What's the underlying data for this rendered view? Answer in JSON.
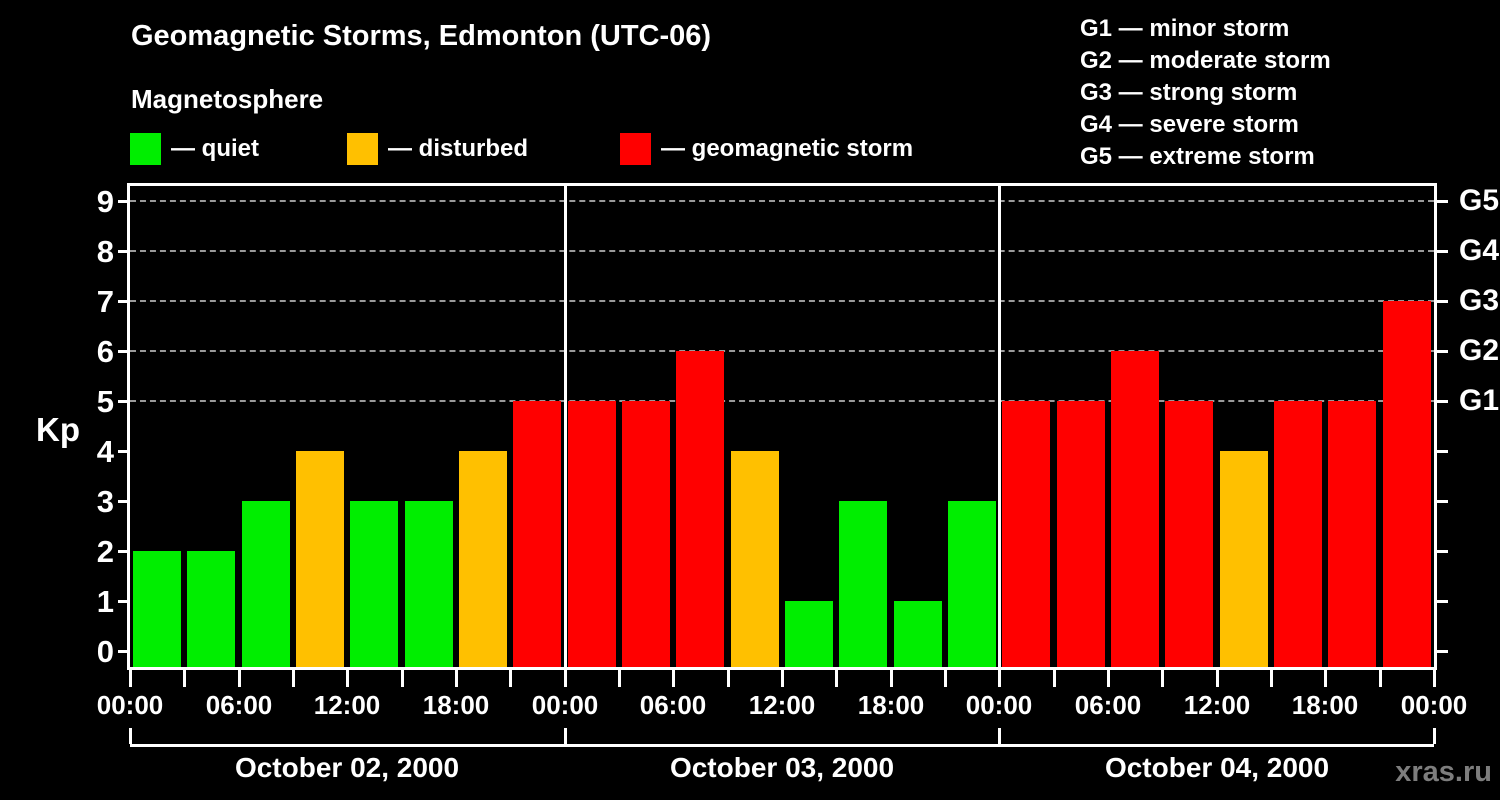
{
  "title": "Geomagnetic Storms, Edmonton (UTC-06)",
  "watermark": "xras.ru",
  "colors": {
    "background": "#000000",
    "axis": "#ffffff",
    "grid": "#9a9a9a",
    "watermark": "#7d7d7d",
    "quiet": "#00ee00",
    "disturbed": "#ffc000",
    "storm": "#ff0000"
  },
  "legend": {
    "title": "Magnetosphere",
    "items": [
      {
        "key": "quiet",
        "label": "— quiet"
      },
      {
        "key": "disturbed",
        "label": "— disturbed"
      },
      {
        "key": "storm",
        "label": "— geomagnetic storm"
      }
    ]
  },
  "storm_scale_legend": {
    "items": [
      "G1 — minor storm",
      "G2 — moderate storm",
      "G3 — strong storm",
      "G4 — severe storm",
      "G5 — extreme storm"
    ]
  },
  "chart_data": {
    "type": "bar",
    "title": "Geomagnetic Storms, Edmonton (UTC-06)",
    "subtitle": "Magnetosphere",
    "ylabel": "Kp",
    "ylim": [
      0,
      9
    ],
    "yticks": [
      0,
      1,
      2,
      3,
      4,
      5,
      6,
      7,
      8,
      9
    ],
    "gridlines_at_kp": [
      5,
      6,
      7,
      8,
      9
    ],
    "grid": "dashed, only at storm levels G1–G5",
    "right_axis": [
      {
        "label": "G5",
        "kp": 9
      },
      {
        "label": "G4",
        "kp": 8
      },
      {
        "label": "G3",
        "kp": 7
      },
      {
        "label": "G2",
        "kp": 6
      },
      {
        "label": "G1",
        "kp": 5
      }
    ],
    "bar_interval_hours": 3,
    "hour_tick_labels": [
      "00:00",
      "06:00",
      "12:00",
      "18:00"
    ],
    "closing_hour_label": "00:00",
    "color_rule": {
      "quiet_kp_max": 3,
      "disturbed_kp": 4,
      "storm_kp_min": 5
    },
    "days": [
      {
        "date": "October 02, 2000",
        "kp_values": [
          2,
          2,
          3,
          4,
          3,
          3,
          4,
          5
        ]
      },
      {
        "date": "October 03, 2000",
        "kp_values": [
          5,
          5,
          6,
          4,
          1,
          3,
          1,
          3
        ]
      },
      {
        "date": "October 04, 2000",
        "kp_values": [
          5,
          5,
          6,
          5,
          4,
          5,
          5,
          7
        ]
      }
    ]
  }
}
